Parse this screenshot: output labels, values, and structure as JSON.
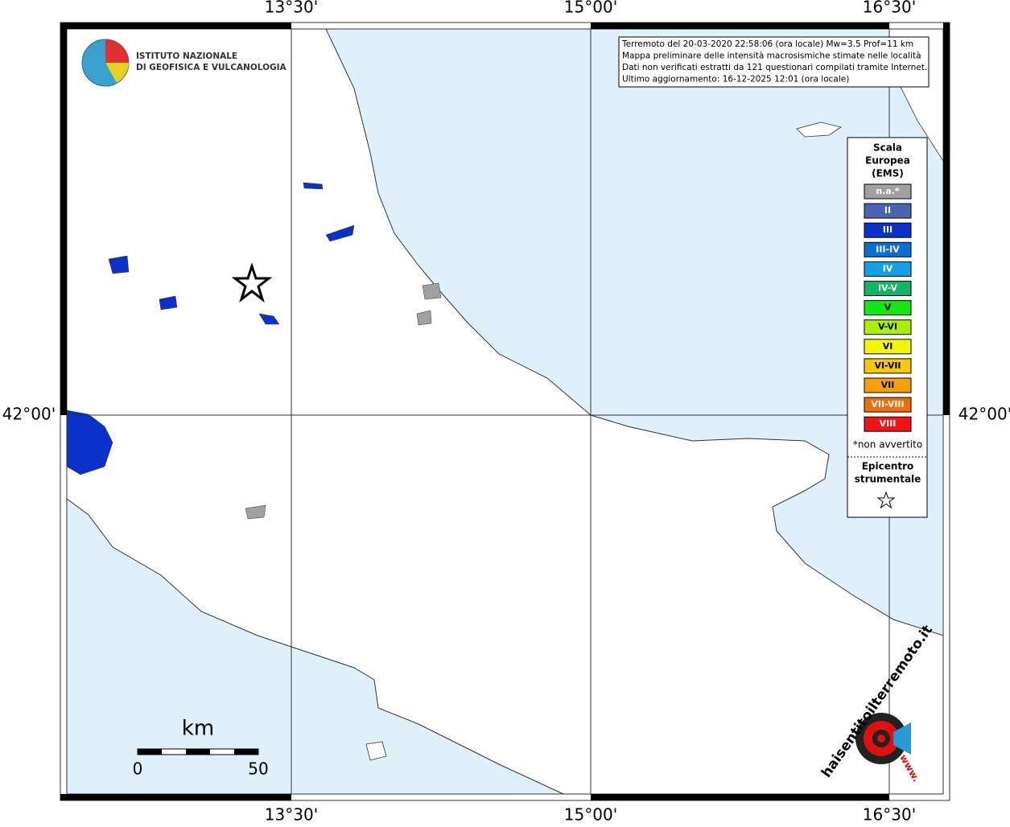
{
  "map_labels": {
    "longitudes": [
      "13°30'",
      "15°00'",
      "16°30'"
    ],
    "latitudes": [
      "42°00'"
    ]
  },
  "logo": {
    "lines": [
      "ISTITUTO NAZIONALE",
      "DI GEOFISICA E VULCANOLOGIA"
    ]
  },
  "info_box": {
    "lines": [
      "Terremoto del 20-03-2020 22:58:06 (ora locale) Mw=3.5 Prof=11 km",
      "Mappa preliminare delle intensità macrosismiche stimate nelle località",
      "Dati non verificati estratti da 121 questionari compilati tramite Internet.",
      "Ultimo aggiornamento: 16-12-2025 12:01 (ora locale)"
    ]
  },
  "legend": {
    "title": [
      "Scala",
      "Europea",
      "(EMS)"
    ],
    "items": [
      {
        "label": "n.a.*",
        "color": "#a0a0a0"
      },
      {
        "label": "II",
        "color": "#4a64b4"
      },
      {
        "label": "III",
        "color": "#0a32c8"
      },
      {
        "label": "III-IV",
        "color": "#0a6ed2"
      },
      {
        "label": "IV",
        "color": "#14a0e6"
      },
      {
        "label": "IV-V",
        "color": "#10b464"
      },
      {
        "label": "V",
        "color": "#14e614"
      },
      {
        "label": "V-VI",
        "color": "#aaee10"
      },
      {
        "label": "VI",
        "color": "#f5f50a"
      },
      {
        "label": "VI-VII",
        "color": "#f5c80a"
      },
      {
        "label": "VII",
        "color": "#f5a00a"
      },
      {
        "label": "VII-VIII",
        "color": "#f06e0a"
      },
      {
        "label": "VIII",
        "color": "#f01414"
      }
    ],
    "note": "*non avvertito",
    "epicenter": [
      "Epicentro",
      "strumentale"
    ]
  },
  "scale_bar": {
    "unit": "km",
    "ticks": [
      0,
      50
    ]
  },
  "site_logo": {
    "text": "haisentitoilterremoto.it",
    "prefix": "www."
  }
}
